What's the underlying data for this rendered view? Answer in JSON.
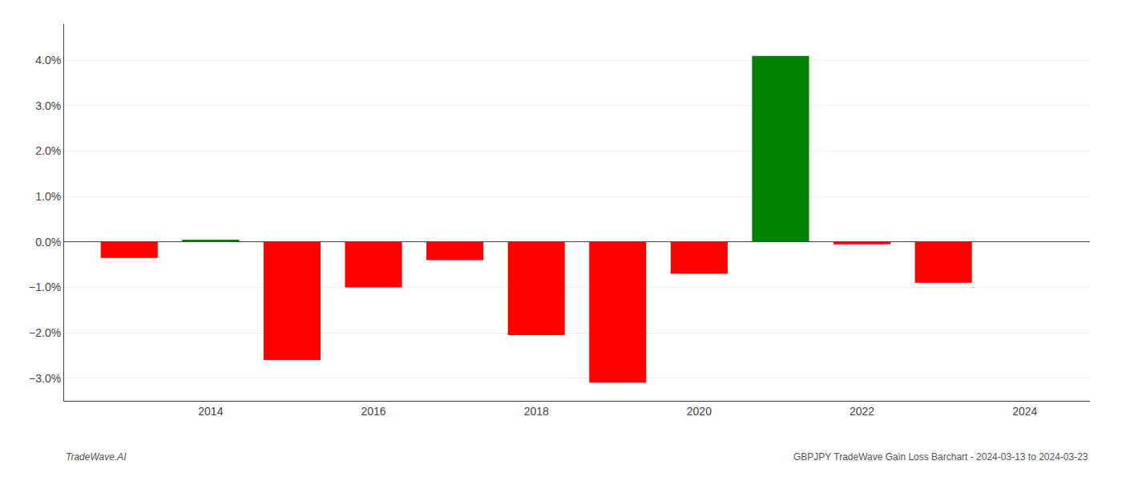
{
  "chart_data": {
    "type": "bar",
    "x": [
      2013,
      2014,
      2015,
      2016,
      2017,
      2018,
      2019,
      2020,
      2021,
      2022,
      2023
    ],
    "values": [
      -0.35,
      0.05,
      -2.6,
      -1.0,
      -0.4,
      -2.05,
      -3.1,
      -0.7,
      4.1,
      -0.05,
      -0.9
    ],
    "colors": [
      "#ff0000",
      "#008000",
      "#ff0000",
      "#ff0000",
      "#ff0000",
      "#ff0000",
      "#ff0000",
      "#ff0000",
      "#008000",
      "#ff0000",
      "#ff0000"
    ],
    "xlim": [
      2012.2,
      2024.8
    ],
    "xticks": [
      2014,
      2016,
      2018,
      2020,
      2022,
      2024
    ],
    "ylim": [
      -3.5,
      4.8
    ],
    "yticks": [
      {
        "value": -3.0,
        "label": "−3.0%"
      },
      {
        "value": -2.0,
        "label": "−2.0%"
      },
      {
        "value": -1.0,
        "label": "−1.0%"
      },
      {
        "value": 0.0,
        "label": "0.0%"
      },
      {
        "value": 1.0,
        "label": "1.0%"
      },
      {
        "value": 2.0,
        "label": "2.0%"
      },
      {
        "value": 3.0,
        "label": "3.0%"
      },
      {
        "value": 4.0,
        "label": "4.0%"
      }
    ],
    "grid": true,
    "annotations": [
      "TradeWave.AI",
      "GBPJPY TradeWave Gain Loss Barchart - 2024-03-13 to 2024-03-23"
    ]
  }
}
